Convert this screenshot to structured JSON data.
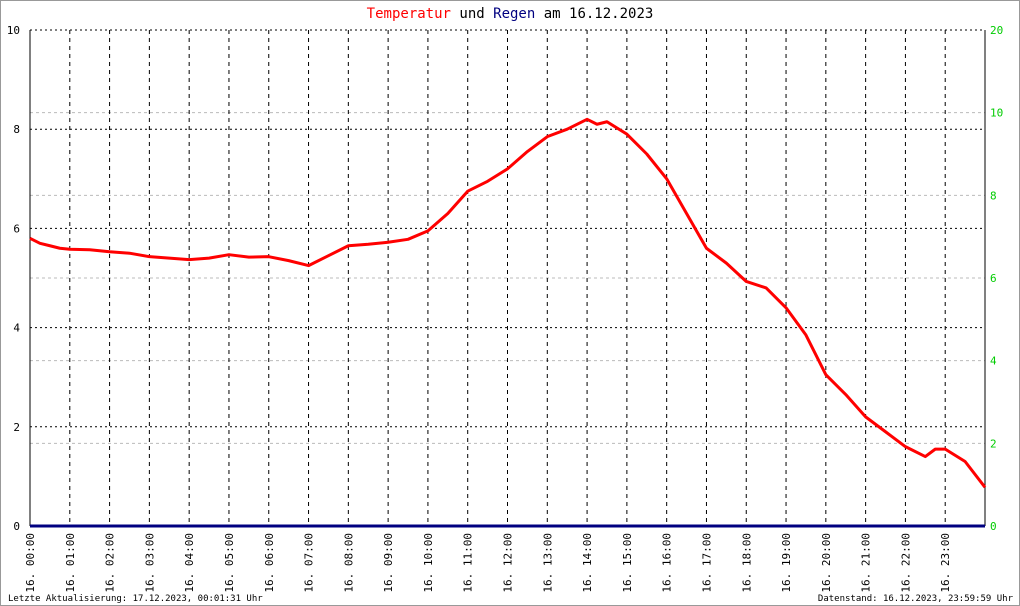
{
  "chart_data": {
    "type": "line",
    "title_connectors": [
      "und",
      "am 16.12.2023"
    ],
    "y2_top_label": "20",
    "footer_left": "Letzte Aktualisierung: 17.12.2023, 00:01:31 Uhr",
    "footer_right": "Datenstand: 16.12.2023, 23:59:59 Uhr",
    "xlim": [
      0,
      24
    ],
    "xticks": [
      {
        "value": 0,
        "label": "16. 00:00"
      },
      {
        "value": 1,
        "label": "16. 01:00"
      },
      {
        "value": 2,
        "label": "16. 02:00"
      },
      {
        "value": 3,
        "label": "16. 03:00"
      },
      {
        "value": 4,
        "label": "16. 04:00"
      },
      {
        "value": 5,
        "label": "16. 05:00"
      },
      {
        "value": 6,
        "label": "16. 06:00"
      },
      {
        "value": 7,
        "label": "16. 07:00"
      },
      {
        "value": 8,
        "label": "16. 08:00"
      },
      {
        "value": 9,
        "label": "16. 09:00"
      },
      {
        "value": 10,
        "label": "16. 10:00"
      },
      {
        "value": 11,
        "label": "16. 11:00"
      },
      {
        "value": 12,
        "label": "16. 12:00"
      },
      {
        "value": 13,
        "label": "16. 13:00"
      },
      {
        "value": 14,
        "label": "16. 14:00"
      },
      {
        "value": 15,
        "label": "16. 15:00"
      },
      {
        "value": 16,
        "label": "16. 16:00"
      },
      {
        "value": 17,
        "label": "16. 17:00"
      },
      {
        "value": 18,
        "label": "16. 18:00"
      },
      {
        "value": 19,
        "label": "16. 19:00"
      },
      {
        "value": 20,
        "label": "16. 20:00"
      },
      {
        "value": 21,
        "label": "16. 21:00"
      },
      {
        "value": 22,
        "label": "16. 22:00"
      },
      {
        "value": 23,
        "label": "16. 23:00"
      }
    ],
    "ylim": [
      0,
      10
    ],
    "yticks": [
      0,
      2,
      4,
      6,
      8,
      10
    ],
    "y2lim": [
      0,
      12
    ],
    "y2ticks": [
      0,
      2,
      4,
      6,
      8,
      10
    ],
    "grid": true,
    "series": [
      {
        "name": "Temperatur",
        "color": "#ff0000",
        "x": [
          0,
          0.25,
          0.5,
          0.75,
          1,
          1.5,
          2,
          2.5,
          3,
          3.5,
          4,
          4.5,
          5,
          5.5,
          6,
          6.5,
          7,
          7.5,
          8,
          8.5,
          9,
          9.5,
          10,
          10.5,
          11,
          11.5,
          12,
          12.5,
          13,
          13.5,
          14,
          14.25,
          14.5,
          15,
          15.5,
          16,
          16.5,
          17,
          17.5,
          18,
          18.5,
          19,
          19.5,
          20,
          20.5,
          21,
          21.5,
          22,
          22.5,
          22.75,
          23,
          23.5,
          24
        ],
        "values": [
          5.8,
          5.7,
          5.65,
          5.6,
          5.58,
          5.57,
          5.53,
          5.5,
          5.43,
          5.4,
          5.37,
          5.4,
          5.47,
          5.42,
          5.43,
          5.35,
          5.25,
          5.45,
          5.65,
          5.68,
          5.72,
          5.78,
          5.95,
          6.3,
          6.75,
          6.95,
          7.2,
          7.55,
          7.85,
          8.0,
          8.2,
          8.1,
          8.15,
          7.9,
          7.5,
          7.0,
          6.3,
          5.6,
          5.3,
          4.93,
          4.8,
          4.4,
          3.85,
          3.05,
          2.65,
          2.2,
          1.9,
          1.6,
          1.4,
          1.55,
          1.55,
          1.3,
          0.78
        ]
      },
      {
        "name": "Regen",
        "color": "#000080",
        "axis": "y2",
        "x": [
          0,
          24
        ],
        "values": [
          0,
          0
        ]
      }
    ]
  }
}
